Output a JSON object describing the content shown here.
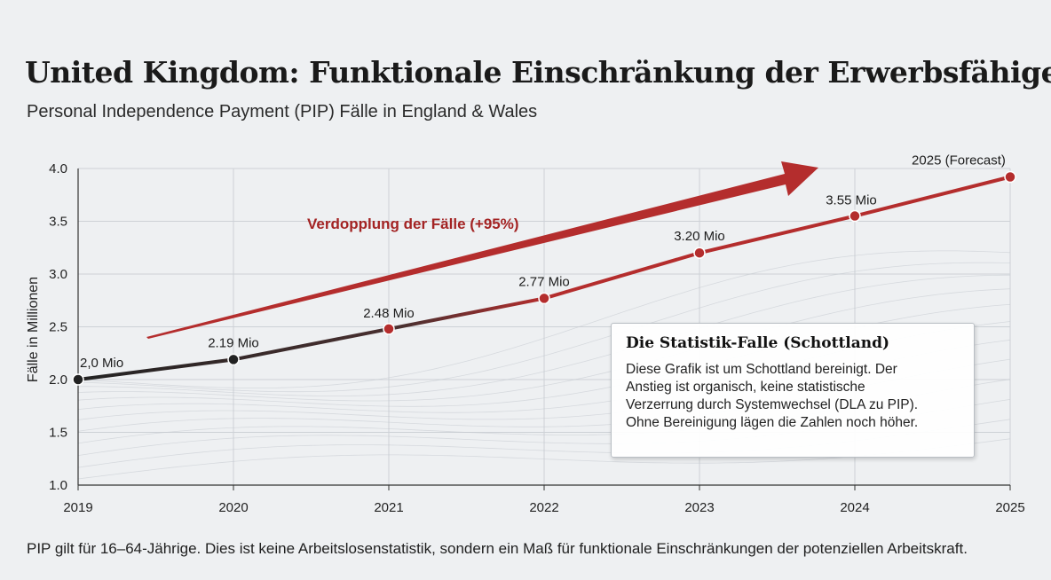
{
  "header": {
    "title": "United Kingdom: Funktionale Einschränkung der Erwerbsfähigen",
    "subtitle": "Personal Independence Payment (PIP) Fälle in England & Wales"
  },
  "callout": {
    "title": "Die Statistik-Falle (Schottland)",
    "lines": [
      "Diese Grafik ist um Schottland bereinigt. Der",
      "Anstieg ist organisch, keine statistische",
      "Verzerrung durch Systemwechsel (DLA zu PIP).",
      "Ohne Bereinigung lägen die Zahlen noch höher."
    ]
  },
  "footnote": "PIP gilt für 16–64-Jährige. Dies ist keine Arbeitslosenstatistik, sondern ein Maß für funktionale Einschränkungen der potenziellen Arbeitskraft.",
  "chart_data": {
    "type": "line",
    "title": "United Kingdom: Funktionale Einschränkung der Erwerbsfähigen",
    "subtitle": "Personal Independence Payment (PIP) Fälle in England & Wales",
    "xlabel": "",
    "ylabel": "Fälle in Millionen",
    "x": [
      "2019",
      "2020",
      "2021",
      "2022",
      "2023",
      "2024",
      "2025"
    ],
    "y": [
      2.0,
      2.19,
      2.48,
      2.77,
      3.2,
      3.55,
      3.92
    ],
    "ylim": [
      1.0,
      4.0
    ],
    "yticks": [
      "1.0",
      "1.5",
      "2.0",
      "2.5",
      "3.0",
      "3.5",
      "4.0"
    ],
    "data_labels": [
      "2,0 Mio",
      "2.19 Mio",
      "2.48 Mio",
      "2.77 Mio",
      "3.20 Mio",
      "3.55 Mio",
      "2025 (Forecast)"
    ],
    "annotation": "Verdopplung der Fälle (+95%)",
    "grid": true,
    "colors": {
      "historic": "#2b2b2b",
      "recent": "#b42d2d",
      "arrow": "#b42d2d",
      "annotation": "#a32323"
    }
  }
}
